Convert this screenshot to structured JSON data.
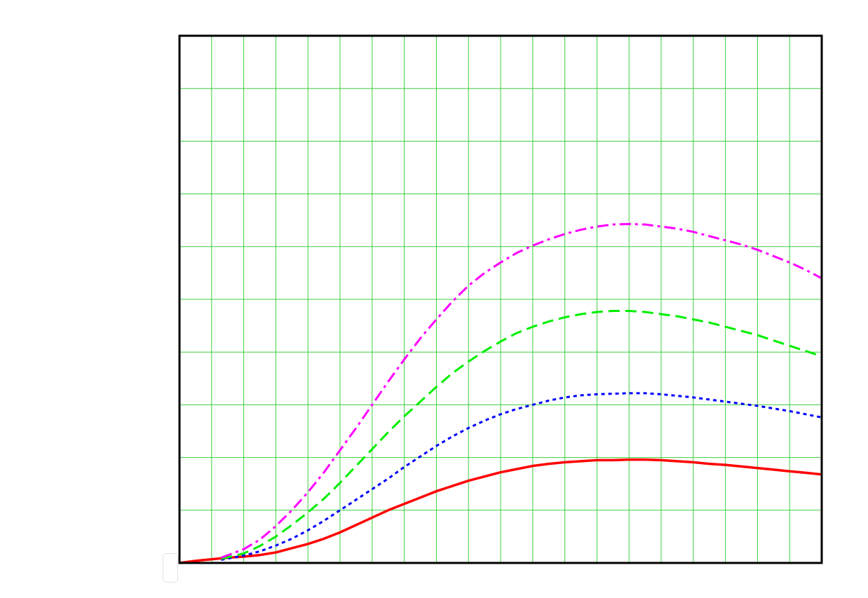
{
  "chart_data": {
    "type": "line",
    "title": "",
    "xlabel": "",
    "ylabel": "",
    "xlim": [
      0,
      20
    ],
    "ylim": [
      0,
      10
    ],
    "x_grid_step": 1,
    "y_grid_step": 1,
    "grid": true,
    "legend": "none",
    "colors": {
      "grid": "#3ccf3c",
      "frame": "#000000",
      "background": "#ffffff"
    },
    "series": [
      {
        "color": "#ff0000",
        "dash": "solid",
        "x": [
          0,
          0.5,
          1,
          1.5,
          2,
          2.5,
          3,
          3.5,
          4,
          4.5,
          5,
          5.5,
          6,
          6.5,
          7,
          7.5,
          8,
          8.5,
          9,
          9.5,
          10,
          10.5,
          11,
          11.5,
          12,
          12.5,
          13,
          13.5,
          14,
          14.5,
          15,
          15.5,
          16,
          16.5,
          17,
          17.5,
          18,
          18.5,
          19,
          19.5,
          20
        ],
        "values": [
          0,
          0.04,
          0.07,
          0.1,
          0.12,
          0.15,
          0.2,
          0.28,
          0.36,
          0.46,
          0.58,
          0.72,
          0.86,
          1.0,
          1.12,
          1.24,
          1.36,
          1.46,
          1.56,
          1.64,
          1.72,
          1.78,
          1.84,
          1.88,
          1.91,
          1.93,
          1.95,
          1.95,
          1.96,
          1.96,
          1.95,
          1.93,
          1.91,
          1.88,
          1.86,
          1.83,
          1.8,
          1.77,
          1.74,
          1.71,
          1.68
        ]
      },
      {
        "color": "#0000ff",
        "dash": "dotted",
        "x": [
          1.3,
          2,
          2.5,
          3,
          3.5,
          4,
          4.5,
          5,
          5.5,
          6,
          6.5,
          7,
          7.5,
          8,
          8.5,
          9,
          9.5,
          10,
          10.5,
          11,
          11.5,
          12,
          12.5,
          13,
          13.5,
          14,
          14.5,
          15,
          15.5,
          16,
          16.5,
          17,
          17.5,
          18,
          18.5,
          19,
          19.5,
          20
        ],
        "values": [
          0.06,
          0.14,
          0.22,
          0.33,
          0.46,
          0.62,
          0.8,
          1.0,
          1.2,
          1.4,
          1.6,
          1.82,
          2.02,
          2.22,
          2.4,
          2.56,
          2.7,
          2.82,
          2.92,
          3.0,
          3.08,
          3.14,
          3.18,
          3.2,
          3.21,
          3.22,
          3.22,
          3.2,
          3.17,
          3.14,
          3.1,
          3.06,
          3.02,
          2.98,
          2.93,
          2.88,
          2.82,
          2.76
        ]
      },
      {
        "color": "#00ee00",
        "dash": "dashed",
        "x": [
          1.3,
          2,
          2.5,
          3,
          3.5,
          4,
          4.5,
          5,
          5.5,
          6,
          6.5,
          7,
          7.5,
          8,
          8.5,
          9,
          9.5,
          10,
          10.5,
          11,
          11.5,
          12,
          12.5,
          13,
          13.5,
          14,
          14.5,
          15,
          15.5,
          16,
          16.5,
          17,
          17.5,
          18,
          18.5,
          19,
          19.5,
          20
        ],
        "values": [
          0.08,
          0.18,
          0.32,
          0.5,
          0.72,
          0.96,
          1.22,
          1.52,
          1.84,
          2.16,
          2.48,
          2.78,
          3.06,
          3.34,
          3.6,
          3.82,
          4.02,
          4.2,
          4.36,
          4.48,
          4.58,
          4.66,
          4.72,
          4.76,
          4.78,
          4.78,
          4.76,
          4.72,
          4.68,
          4.62,
          4.56,
          4.48,
          4.4,
          4.32,
          4.22,
          4.12,
          4.02,
          3.92
        ]
      },
      {
        "color": "#ff00ff",
        "dash": "dashdot",
        "x": [
          1.3,
          2,
          2.5,
          3,
          3.5,
          4,
          4.5,
          5,
          5.5,
          6,
          6.5,
          7,
          7.5,
          8,
          8.5,
          9,
          9.5,
          10,
          10.5,
          11,
          11.5,
          12,
          12.5,
          13,
          13.5,
          14,
          14.5,
          15,
          15.5,
          16,
          16.5,
          17,
          17.5,
          18,
          18.5,
          19,
          19.5,
          20
        ],
        "values": [
          0.1,
          0.26,
          0.44,
          0.7,
          1.0,
          1.34,
          1.72,
          2.14,
          2.56,
          3.0,
          3.44,
          3.86,
          4.26,
          4.62,
          4.96,
          5.26,
          5.5,
          5.7,
          5.88,
          6.02,
          6.14,
          6.24,
          6.32,
          6.38,
          6.42,
          6.43,
          6.42,
          6.38,
          6.34,
          6.28,
          6.2,
          6.12,
          6.04,
          5.94,
          5.82,
          5.7,
          5.56,
          5.4
        ]
      }
    ]
  }
}
